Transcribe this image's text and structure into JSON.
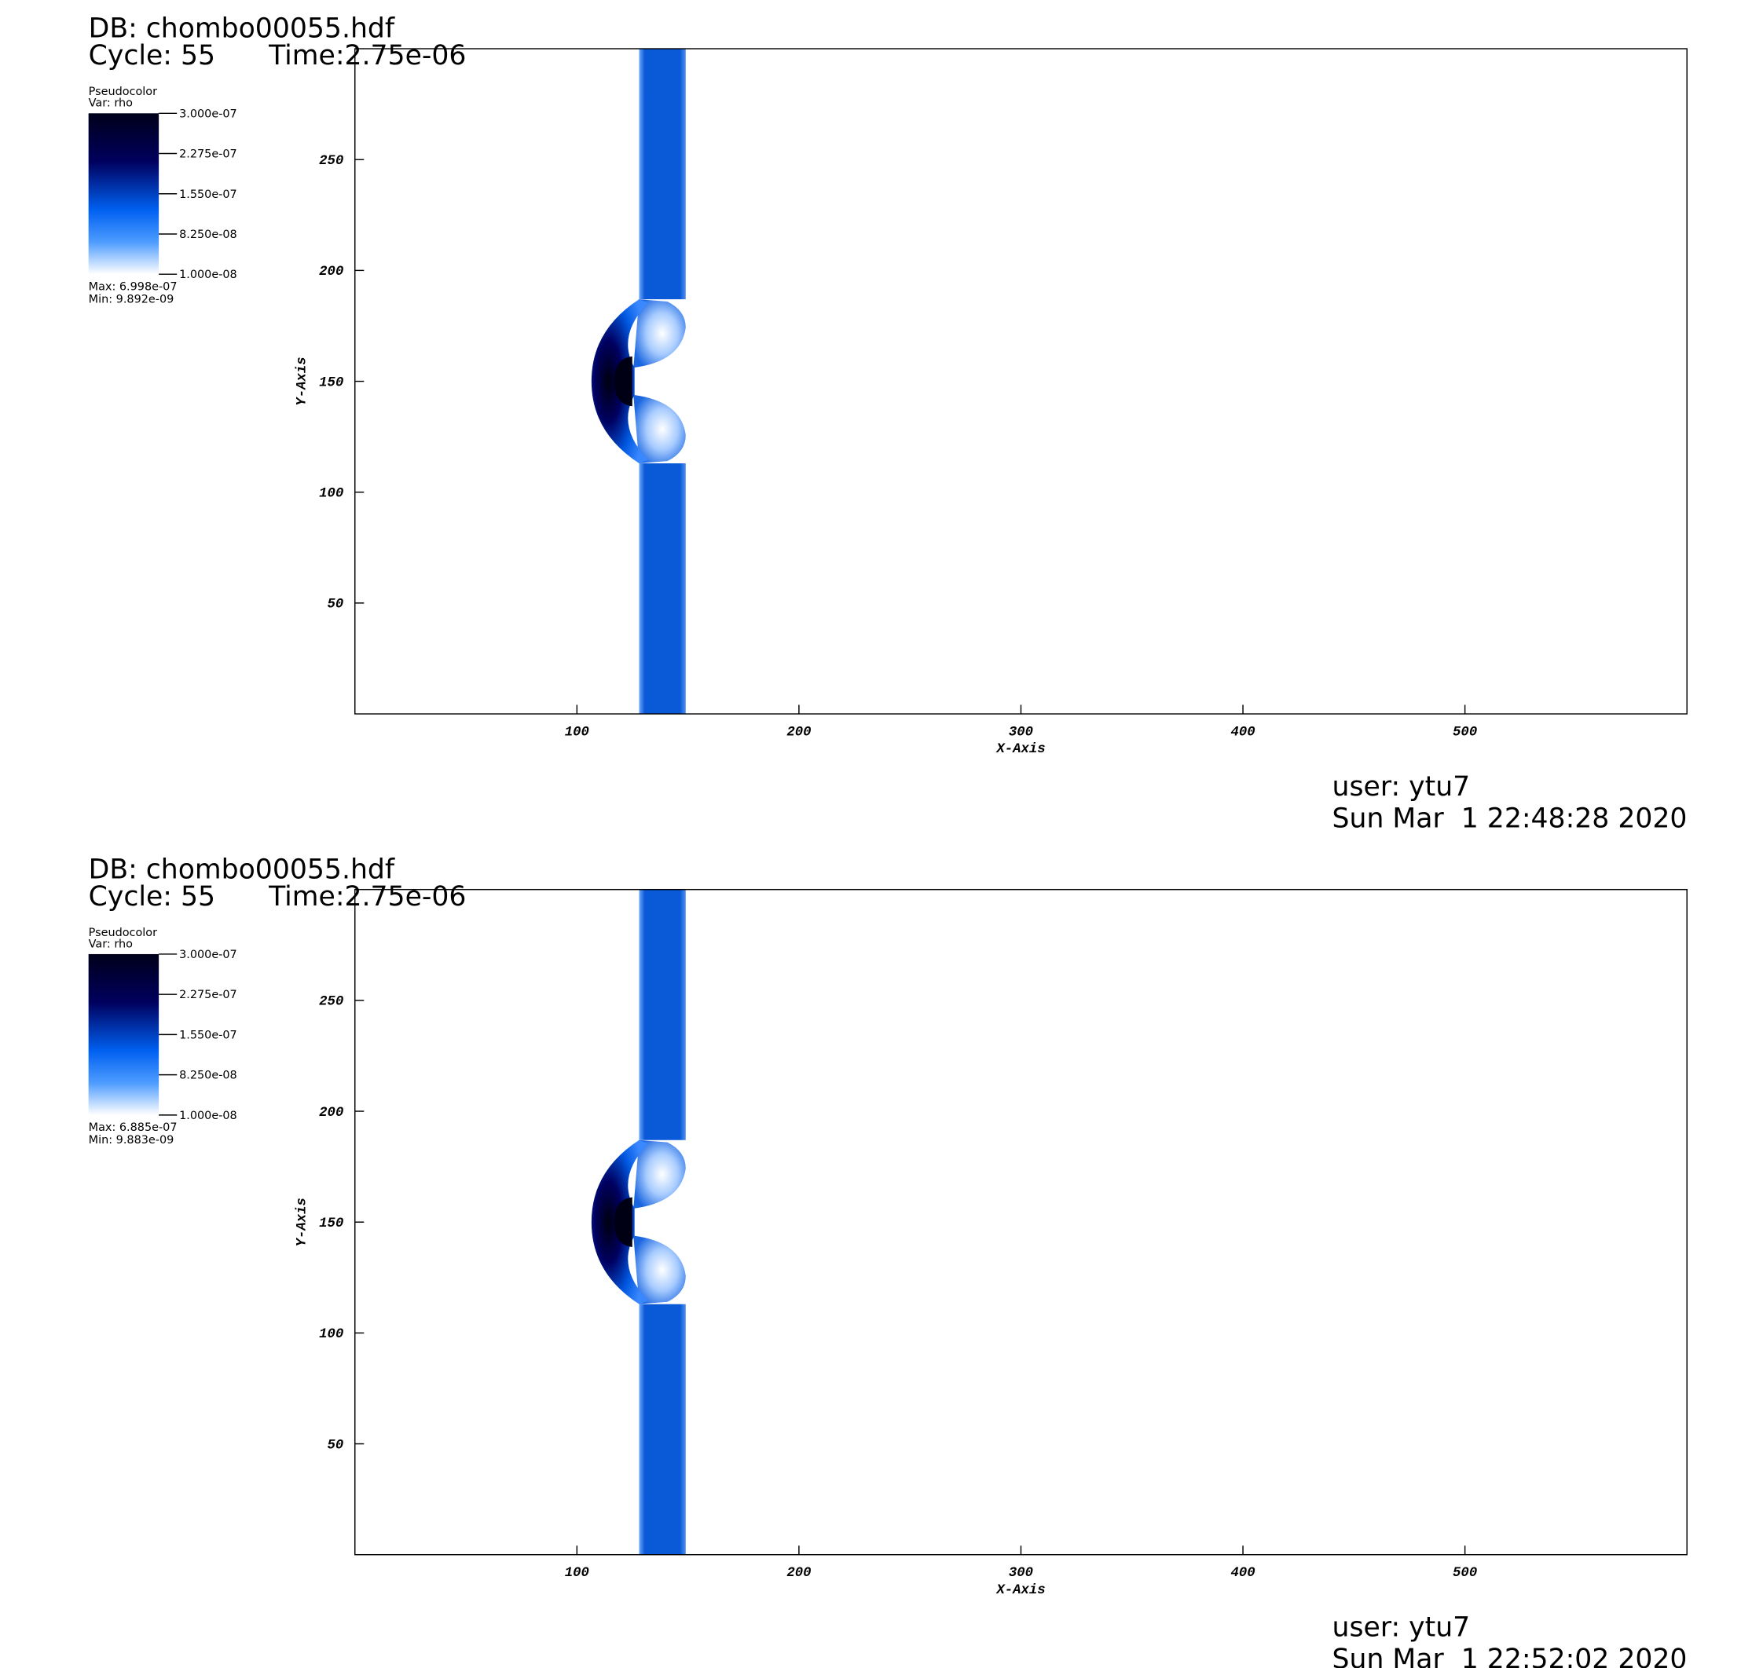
{
  "chart_data": [
    {
      "type": "pseudocolor",
      "db": "DB: chombo00055.hdf",
      "cycle": "Cycle: 55",
      "time": "Time:2.75e-06",
      "legend_title": "Pseudocolor",
      "legend_var": "Var: rho",
      "colorbar_lim": [
        1e-08,
        3e-07
      ],
      "colorbar_ticks": [
        {
          "value": 3e-07,
          "label": "3.000e-07"
        },
        {
          "value": 2.275e-07,
          "label": "2.275e-07"
        },
        {
          "value": 1.55e-07,
          "label": "1.550e-07"
        },
        {
          "value": 8.25e-08,
          "label": "8.250e-08"
        },
        {
          "value": 1e-08,
          "label": "1.000e-08"
        }
      ],
      "max": "Max: 6.998e-07",
      "min": "Min: 9.892e-09",
      "x_label": "X-Axis",
      "y_label": "Y-Axis",
      "xlim": [
        0,
        600
      ],
      "ylim": [
        0,
        300
      ],
      "xticks": [
        100,
        200,
        300,
        400,
        500
      ],
      "yticks": [
        50,
        100,
        150,
        200,
        250
      ],
      "user": "user: ytu7",
      "date": "Sun Mar  1 22:48:28 2020"
    },
    {
      "type": "pseudocolor",
      "db": "DB: chombo00055.hdf",
      "cycle": "Cycle: 55",
      "time": "Time:2.75e-06",
      "legend_title": "Pseudocolor",
      "legend_var": "Var: rho",
      "colorbar_lim": [
        1e-08,
        3e-07
      ],
      "colorbar_ticks": [
        {
          "value": 3e-07,
          "label": "3.000e-07"
        },
        {
          "value": 2.275e-07,
          "label": "2.275e-07"
        },
        {
          "value": 1.55e-07,
          "label": "1.550e-07"
        },
        {
          "value": 8.25e-08,
          "label": "8.250e-08"
        },
        {
          "value": 1e-08,
          "label": "1.000e-08"
        }
      ],
      "max": "Max: 6.885e-07",
      "min": "Min: 9.883e-09",
      "x_label": "X-Axis",
      "y_label": "Y-Axis",
      "xlim": [
        0,
        600
      ],
      "ylim": [
        0,
        300
      ],
      "xticks": [
        100,
        200,
        300,
        400,
        500
      ],
      "yticks": [
        50,
        100,
        150,
        200,
        250
      ],
      "user": "user: ytu7",
      "date": "Sun Mar  1 22:52:02 2020"
    }
  ]
}
